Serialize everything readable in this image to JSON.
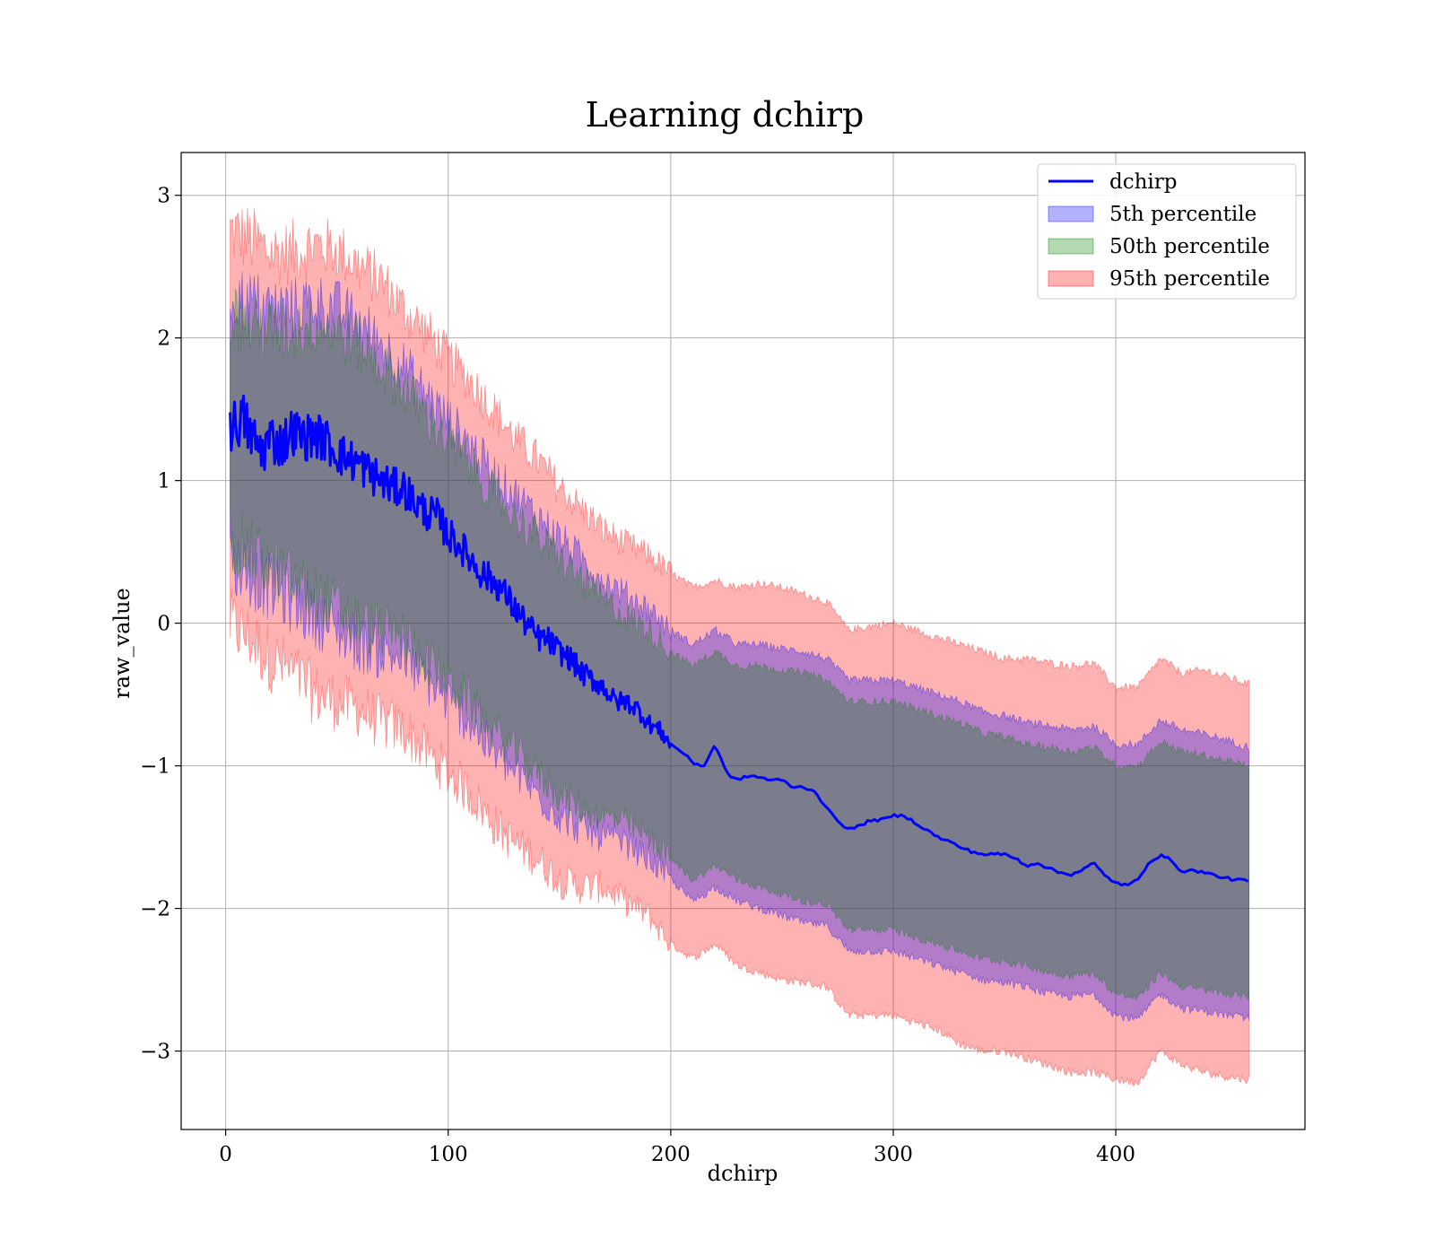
{
  "chart_data": {
    "type": "line",
    "title": "Learning dchirp",
    "xlabel": "dchirp",
    "ylabel": "raw_value",
    "xlim": [
      -20,
      485
    ],
    "ylim": [
      -3.55,
      3.3
    ],
    "xticks": [
      0,
      100,
      200,
      300,
      400
    ],
    "yticks": [
      3,
      2,
      1,
      0,
      -1,
      -2,
      -3
    ],
    "ytick_labels": [
      "3",
      "2",
      "1",
      "0",
      "−1",
      "−2",
      "−3"
    ],
    "grid": true,
    "legend_position": "top-right",
    "legend": [
      {
        "label": "dchirp",
        "kind": "line",
        "color": "#0000ff"
      },
      {
        "label": "5th percentile",
        "kind": "band",
        "color": "#0000ff"
      },
      {
        "label": "50th percentile",
        "kind": "band",
        "color": "#008000"
      },
      {
        "label": "95th percentile",
        "kind": "band",
        "color": "#ff0000"
      }
    ],
    "line": {
      "name": "dchirp",
      "color": "#0000ff",
      "x": [
        2,
        5,
        8,
        12,
        16,
        20,
        25,
        30,
        35,
        40,
        45,
        50,
        55,
        60,
        65,
        70,
        75,
        80,
        85,
        90,
        95,
        100,
        105,
        110,
        115,
        120,
        125,
        130,
        135,
        140,
        145,
        150,
        155,
        160,
        165,
        170,
        175,
        180,
        185,
        190,
        195,
        200,
        205,
        210,
        215,
        220,
        225,
        230,
        235,
        240,
        245,
        250,
        255,
        260,
        265,
        270,
        275,
        280,
        285,
        290,
        295,
        300,
        305,
        310,
        315,
        320,
        325,
        330,
        335,
        340,
        345,
        350,
        355,
        360,
        365,
        370,
        375,
        380,
        385,
        390,
        395,
        400,
        405,
        410,
        415,
        420,
        425,
        430,
        435,
        440,
        445,
        450,
        455,
        460
      ],
      "y": [
        1.37,
        1.4,
        1.43,
        1.3,
        1.2,
        1.3,
        1.25,
        1.35,
        1.3,
        1.32,
        1.28,
        1.2,
        1.15,
        1.12,
        1.05,
        1.0,
        0.95,
        0.95,
        0.85,
        0.78,
        0.75,
        0.62,
        0.55,
        0.45,
        0.35,
        0.3,
        0.22,
        0.1,
        0.0,
        -0.1,
        -0.12,
        -0.2,
        -0.25,
        -0.35,
        -0.4,
        -0.45,
        -0.55,
        -0.55,
        -0.6,
        -0.7,
        -0.75,
        -0.85,
        -0.9,
        -0.98,
        -1.0,
        -0.85,
        -1.05,
        -1.1,
        -1.07,
        -1.08,
        -1.1,
        -1.1,
        -1.15,
        -1.15,
        -1.18,
        -1.3,
        -1.38,
        -1.45,
        -1.42,
        -1.38,
        -1.38,
        -1.35,
        -1.35,
        -1.4,
        -1.45,
        -1.5,
        -1.53,
        -1.57,
        -1.6,
        -1.62,
        -1.62,
        -1.62,
        -1.65,
        -1.7,
        -1.68,
        -1.72,
        -1.75,
        -1.76,
        -1.73,
        -1.68,
        -1.77,
        -1.82,
        -1.84,
        -1.8,
        -1.67,
        -1.63,
        -1.66,
        -1.75,
        -1.73,
        -1.75,
        -1.77,
        -1.79,
        -1.8,
        -1.81
      ]
    },
    "bands": [
      {
        "name": "95th percentile",
        "color": "#ff0000",
        "x": [
          2,
          10,
          20,
          30,
          40,
          50,
          60,
          70,
          80,
          90,
          100,
          110,
          120,
          130,
          140,
          150,
          160,
          170,
          180,
          190,
          200,
          210,
          220,
          230,
          240,
          250,
          260,
          270,
          280,
          290,
          300,
          310,
          320,
          330,
          340,
          350,
          360,
          370,
          380,
          390,
          400,
          410,
          420,
          430,
          440,
          450,
          460
        ],
        "upper": [
          2.75,
          2.7,
          2.6,
          2.6,
          2.65,
          2.62,
          2.5,
          2.4,
          2.2,
          2.05,
          1.85,
          1.7,
          1.5,
          1.3,
          1.15,
          0.95,
          0.8,
          0.65,
          0.55,
          0.48,
          0.35,
          0.25,
          0.3,
          0.25,
          0.28,
          0.25,
          0.2,
          0.15,
          -0.05,
          -0.02,
          0.0,
          -0.05,
          -0.1,
          -0.15,
          -0.2,
          -0.25,
          -0.25,
          -0.28,
          -0.3,
          -0.28,
          -0.45,
          -0.45,
          -0.25,
          -0.35,
          -0.33,
          -0.38,
          -0.43
        ],
        "lower": [
          0.0,
          -0.1,
          -0.25,
          -0.35,
          -0.5,
          -0.55,
          -0.6,
          -0.7,
          -0.75,
          -0.9,
          -1.05,
          -1.2,
          -1.4,
          -1.55,
          -1.65,
          -1.8,
          -1.85,
          -1.85,
          -1.95,
          -2.05,
          -2.25,
          -2.35,
          -2.25,
          -2.4,
          -2.45,
          -2.5,
          -2.52,
          -2.55,
          -2.75,
          -2.75,
          -2.75,
          -2.8,
          -2.85,
          -2.95,
          -3.0,
          -3.0,
          -3.05,
          -3.1,
          -3.15,
          -3.15,
          -3.2,
          -3.22,
          -3.0,
          -3.1,
          -3.15,
          -3.18,
          -3.2
        ]
      },
      {
        "name": "5th percentile",
        "color": "#0000ff",
        "x": [
          2,
          10,
          20,
          30,
          40,
          50,
          60,
          70,
          80,
          90,
          100,
          110,
          120,
          130,
          140,
          150,
          160,
          170,
          180,
          190,
          200,
          210,
          220,
          230,
          240,
          250,
          260,
          270,
          280,
          290,
          300,
          310,
          320,
          330,
          340,
          350,
          360,
          370,
          380,
          390,
          400,
          410,
          420,
          430,
          440,
          450,
          460
        ],
        "upper": [
          2.3,
          2.25,
          2.2,
          2.2,
          2.25,
          2.2,
          2.1,
          1.95,
          1.8,
          1.6,
          1.42,
          1.25,
          1.05,
          0.9,
          0.75,
          0.6,
          0.45,
          0.3,
          0.2,
          0.1,
          -0.05,
          -0.15,
          -0.05,
          -0.15,
          -0.15,
          -0.18,
          -0.2,
          -0.25,
          -0.4,
          -0.4,
          -0.4,
          -0.45,
          -0.5,
          -0.55,
          -0.62,
          -0.65,
          -0.7,
          -0.72,
          -0.75,
          -0.72,
          -0.85,
          -0.85,
          -0.68,
          -0.75,
          -0.78,
          -0.82,
          -0.87
        ],
        "lower": [
          0.45,
          0.35,
          0.25,
          0.15,
          0.05,
          -0.05,
          -0.15,
          -0.2,
          -0.25,
          -0.4,
          -0.55,
          -0.7,
          -0.9,
          -1.05,
          -1.2,
          -1.35,
          -1.45,
          -1.5,
          -1.55,
          -1.65,
          -1.8,
          -1.95,
          -1.85,
          -1.95,
          -2.0,
          -2.05,
          -2.1,
          -2.12,
          -2.3,
          -2.3,
          -2.3,
          -2.35,
          -2.4,
          -2.45,
          -2.5,
          -2.52,
          -2.55,
          -2.6,
          -2.62,
          -2.6,
          -2.75,
          -2.78,
          -2.6,
          -2.7,
          -2.72,
          -2.75,
          -2.77
        ]
      },
      {
        "name": "50th percentile",
        "color": "#008000",
        "x": [
          2,
          10,
          20,
          30,
          40,
          50,
          60,
          70,
          80,
          90,
          100,
          110,
          120,
          130,
          140,
          150,
          160,
          170,
          180,
          190,
          200,
          210,
          220,
          230,
          240,
          250,
          260,
          270,
          280,
          290,
          300,
          310,
          320,
          330,
          340,
          350,
          360,
          370,
          380,
          390,
          400,
          410,
          420,
          430,
          440,
          450,
          460
        ],
        "upper": [
          2.15,
          2.1,
          2.05,
          2.05,
          2.1,
          2.05,
          1.95,
          1.8,
          1.65,
          1.45,
          1.28,
          1.1,
          0.9,
          0.75,
          0.6,
          0.45,
          0.3,
          0.15,
          0.05,
          -0.05,
          -0.2,
          -0.3,
          -0.2,
          -0.3,
          -0.3,
          -0.33,
          -0.35,
          -0.4,
          -0.55,
          -0.55,
          -0.55,
          -0.6,
          -0.65,
          -0.7,
          -0.77,
          -0.8,
          -0.85,
          -0.87,
          -0.9,
          -0.87,
          -1.0,
          -1.0,
          -0.83,
          -0.9,
          -0.93,
          -0.97,
          -1.0
        ],
        "lower": [
          0.6,
          0.5,
          0.4,
          0.3,
          0.2,
          0.1,
          0.0,
          -0.05,
          -0.1,
          -0.25,
          -0.4,
          -0.55,
          -0.75,
          -0.9,
          -1.05,
          -1.2,
          -1.3,
          -1.35,
          -1.4,
          -1.5,
          -1.65,
          -1.8,
          -1.7,
          -1.8,
          -1.85,
          -1.9,
          -1.95,
          -1.97,
          -2.15,
          -2.15,
          -2.15,
          -2.2,
          -2.25,
          -2.3,
          -2.35,
          -2.37,
          -2.4,
          -2.45,
          -2.47,
          -2.45,
          -2.6,
          -2.63,
          -2.45,
          -2.55,
          -2.57,
          -2.6,
          -2.62
        ]
      }
    ]
  }
}
